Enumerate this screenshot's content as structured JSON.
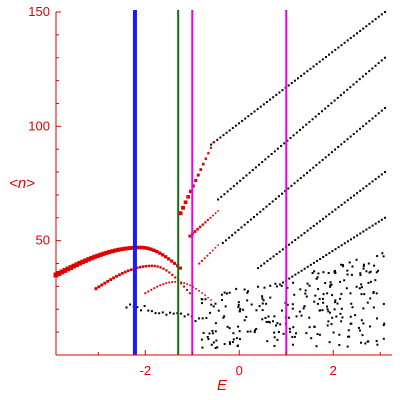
{
  "chart_data": {
    "type": "scatter",
    "xlabel": "E",
    "ylabel": "<n>",
    "xlim": [
      -3.9,
      3.25
    ],
    "ylim": [
      0,
      150
    ],
    "x_ticks": [
      -2,
      0,
      2
    ],
    "x_tick_labels": [
      "-2",
      "0",
      "2"
    ],
    "y_ticks": [
      50,
      100,
      150
    ],
    "y_tick_labels": [
      "50",
      "100",
      "150"
    ],
    "grid": false,
    "colors": {
      "axes": "#e00000",
      "highlight": "#e00000",
      "points": "#000000"
    },
    "vertical_lines": [
      {
        "x": -2.22,
        "color": "#1a1aff"
      },
      {
        "x": -1.3,
        "color": "#107010"
      },
      {
        "x": -1.0,
        "color": "#ee00ee"
      },
      {
        "x": 1.0,
        "color": "#ee00ee"
      }
    ],
    "red_bands": [
      {
        "x_start": -3.9,
        "x_end": -1.25,
        "peak_x": -2.1,
        "peak_y": 47,
        "y_start": 35,
        "y_end": 38,
        "size_start": 5,
        "size_end": 3
      },
      {
        "x_start": -3.05,
        "x_end": -1.05,
        "peak_x": -1.85,
        "peak_y": 39,
        "y_start": 29,
        "y_end": 27,
        "size_start": 3,
        "size_end": 2
      },
      {
        "x_start": -2.0,
        "x_end": -0.6,
        "peak_x": -1.35,
        "peak_y": 32,
        "y_start": 27,
        "y_end": 24,
        "size_start": 2,
        "size_end": 1.5
      }
    ],
    "red_rising": [
      {
        "x_start": -1.25,
        "x_end": -0.55,
        "y_start": 62,
        "y_end": 93,
        "size_start": 4,
        "size_end": 2
      },
      {
        "x_start": -1.05,
        "x_end": -0.45,
        "y_start": 52,
        "y_end": 63,
        "size_start": 3,
        "size_end": 1.5
      },
      {
        "x_start": -0.85,
        "x_end": -0.45,
        "y_start": 40,
        "y_end": 48,
        "size_start": 2,
        "size_end": 1.5
      }
    ],
    "black_lines": [
      {
        "x_start": -0.6,
        "x_end": 3.1,
        "y_start": 92,
        "y_end": 150
      },
      {
        "x_start": -0.45,
        "x_end": 3.1,
        "y_start": 68,
        "y_end": 130
      },
      {
        "x_start": -0.35,
        "x_end": 3.1,
        "y_start": 49,
        "y_end": 108
      },
      {
        "x_start": 0.4,
        "x_end": 3.1,
        "y_start": 38,
        "y_end": 80
      },
      {
        "x_start": 0.8,
        "x_end": 3.1,
        "y_start": 30,
        "y_end": 60
      }
    ],
    "black_cloud": {
      "x_range": [
        -0.8,
        3.1
      ],
      "y_range": [
        0,
        45
      ],
      "count": 260
    },
    "black_lower_tail": {
      "x_start": -2.4,
      "x_end": -0.7,
      "y_start": 22,
      "y_end": 15
    }
  }
}
